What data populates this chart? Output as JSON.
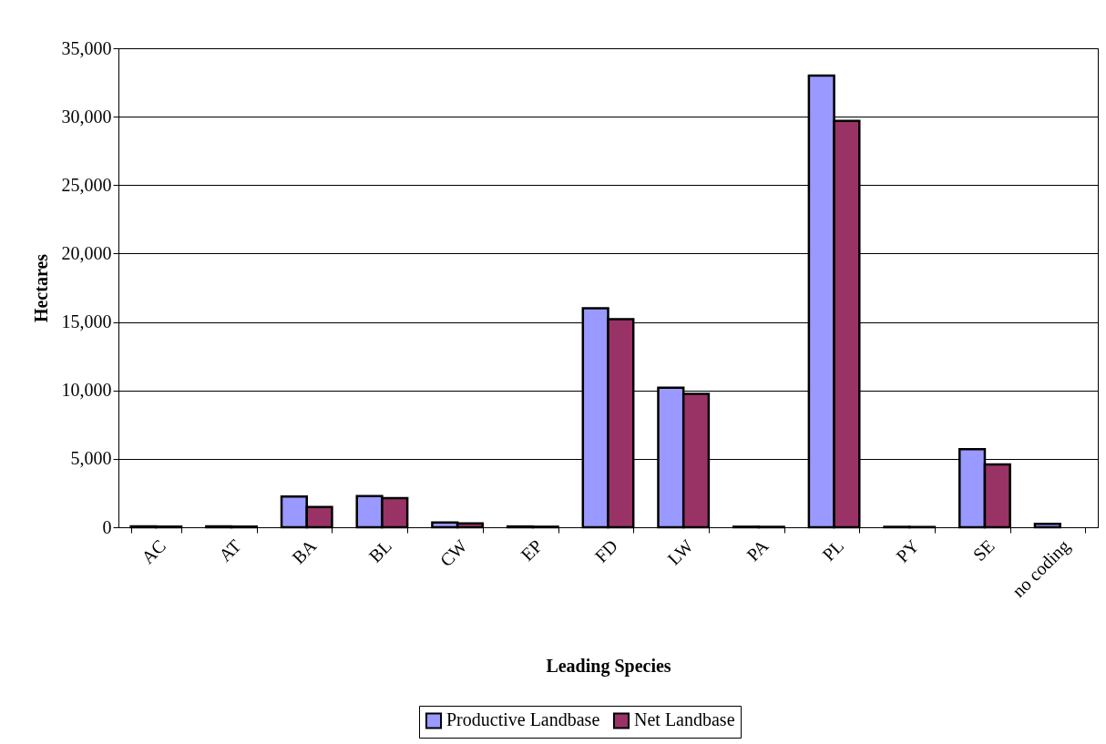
{
  "chart_data": {
    "type": "bar",
    "xlabel": "Leading Species",
    "ylabel": "Hectares",
    "categories": [
      "AC",
      "AT",
      "BA",
      "BL",
      "CW",
      "EP",
      "FD",
      "LW",
      "PA",
      "PL",
      "PY",
      "SE",
      "no coding"
    ],
    "series": [
      {
        "name": "Productive Landbase",
        "color": "#9999ff",
        "values": [
          60,
          60,
          2240,
          2280,
          350,
          60,
          16000,
          10200,
          40,
          33000,
          30,
          5710,
          250
        ]
      },
      {
        "name": "Net Landbase",
        "color": "#993366",
        "values": [
          50,
          50,
          1480,
          2130,
          290,
          40,
          15200,
          9750,
          30,
          29700,
          20,
          4590,
          null
        ]
      }
    ],
    "ylim": [
      0,
      35000
    ],
    "yticks": [
      0,
      {
        "value": 5000,
        "label": "5,000"
      },
      {
        "value": 10000,
        "label": "10,000"
      },
      {
        "value": 15000,
        "label": "15,000"
      },
      {
        "value": 20000,
        "label": "20,000"
      },
      {
        "value": 25000,
        "label": "25,000"
      },
      {
        "value": 30000,
        "label": "30,000"
      },
      {
        "value": 35000,
        "label": "35,000"
      }
    ],
    "grid": "y",
    "legend": "bottom"
  }
}
